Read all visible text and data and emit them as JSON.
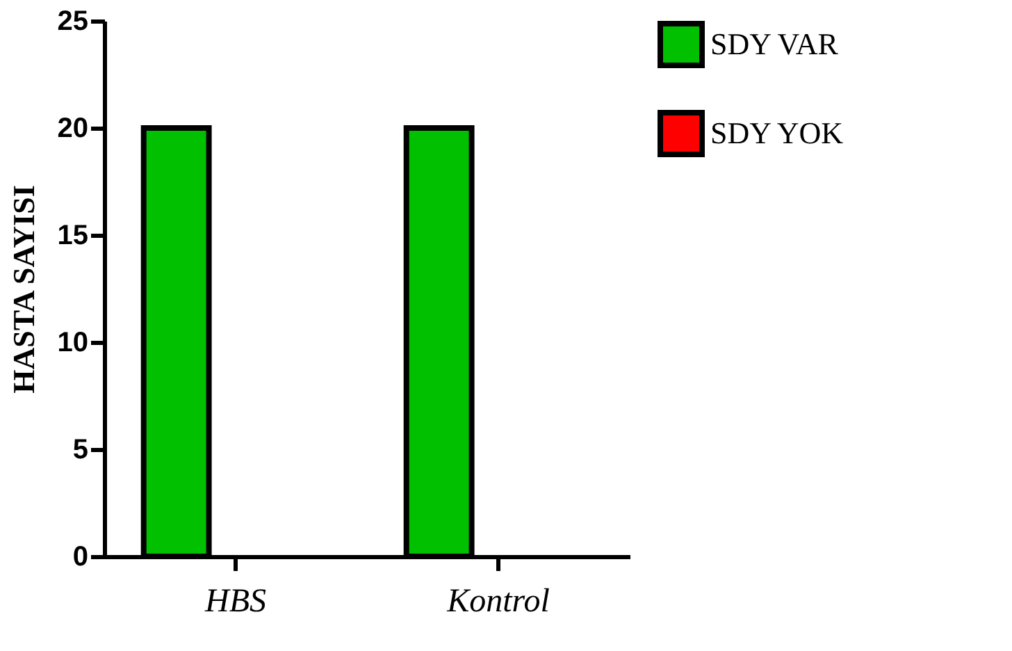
{
  "chart_data": {
    "type": "bar",
    "ylabel": "HASTA SAYISI",
    "categories": [
      "HBS",
      "Kontrol"
    ],
    "series": [
      {
        "name": "SDY VAR",
        "color": "#00c000",
        "values": [
          20,
          20
        ]
      },
      {
        "name": "SDY YOK",
        "color": "#ff0000",
        "values": [
          0,
          0
        ]
      }
    ],
    "ylim": [
      0,
      25
    ],
    "yticks": [
      0,
      5,
      10,
      15,
      20,
      25
    ],
    "grid": false,
    "legend": "top right"
  }
}
